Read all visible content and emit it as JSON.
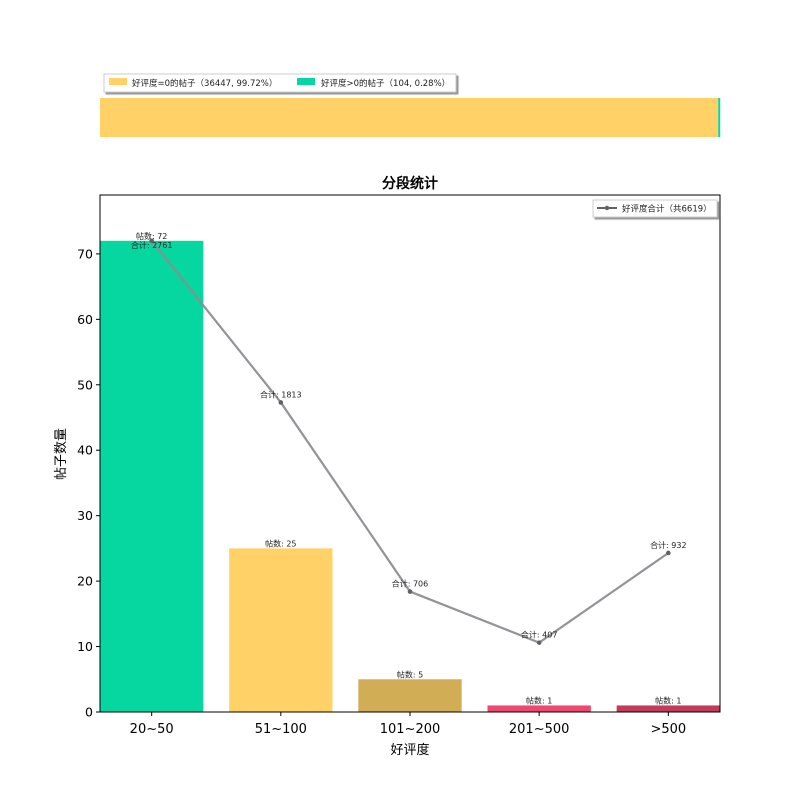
{
  "chart_data": [
    {
      "type": "bar",
      "orientation": "horizontal-stacked",
      "segments": [
        {
          "name": "好评度=0的帖子",
          "label": "好评度=0的帖子（36447, 99.72%）",
          "value": 36447,
          "percent": 99.72,
          "color": "#ffd166"
        },
        {
          "name": "好评度>0的帖子",
          "label": "好评度>0的帖子（104, 0.28%）",
          "value": 104,
          "percent": 0.28,
          "color": "#06d6a0"
        }
      ],
      "legend_position": "top-left"
    },
    {
      "type": "bar",
      "title": "分段统计",
      "xlabel": "好评度",
      "ylabel": "帖子数量",
      "ylim": [
        0,
        79
      ],
      "yticks": [
        0,
        10,
        20,
        30,
        40,
        50,
        60,
        70
      ],
      "categories": [
        "20~50",
        "51~100",
        "101~200",
        "201~500",
        ">500"
      ],
      "bar_series": {
        "name": "帖数",
        "values": [
          72,
          25,
          5,
          1,
          1
        ],
        "labels": [
          "帖数: 72",
          "帖数: 25",
          "帖数: 5",
          "帖数: 1",
          "帖数: 1"
        ],
        "colors": [
          "#06d6a0",
          "#ffd166",
          "#d1ad55",
          "#ef476f",
          "#c43a5a"
        ]
      },
      "line_series": {
        "name": "好评度合计（共6619）",
        "totals": [
          2761,
          1813,
          706,
          407,
          932
        ],
        "plot_values": [
          72,
          47.3,
          18.4,
          10.6,
          24.3
        ],
        "labels": [
          "合计: 2761",
          "合计: 1813",
          "合计: 706",
          "合计: 407",
          "合计: 932"
        ],
        "color": "#8d8d92"
      },
      "legend_position": "top-right"
    }
  ]
}
